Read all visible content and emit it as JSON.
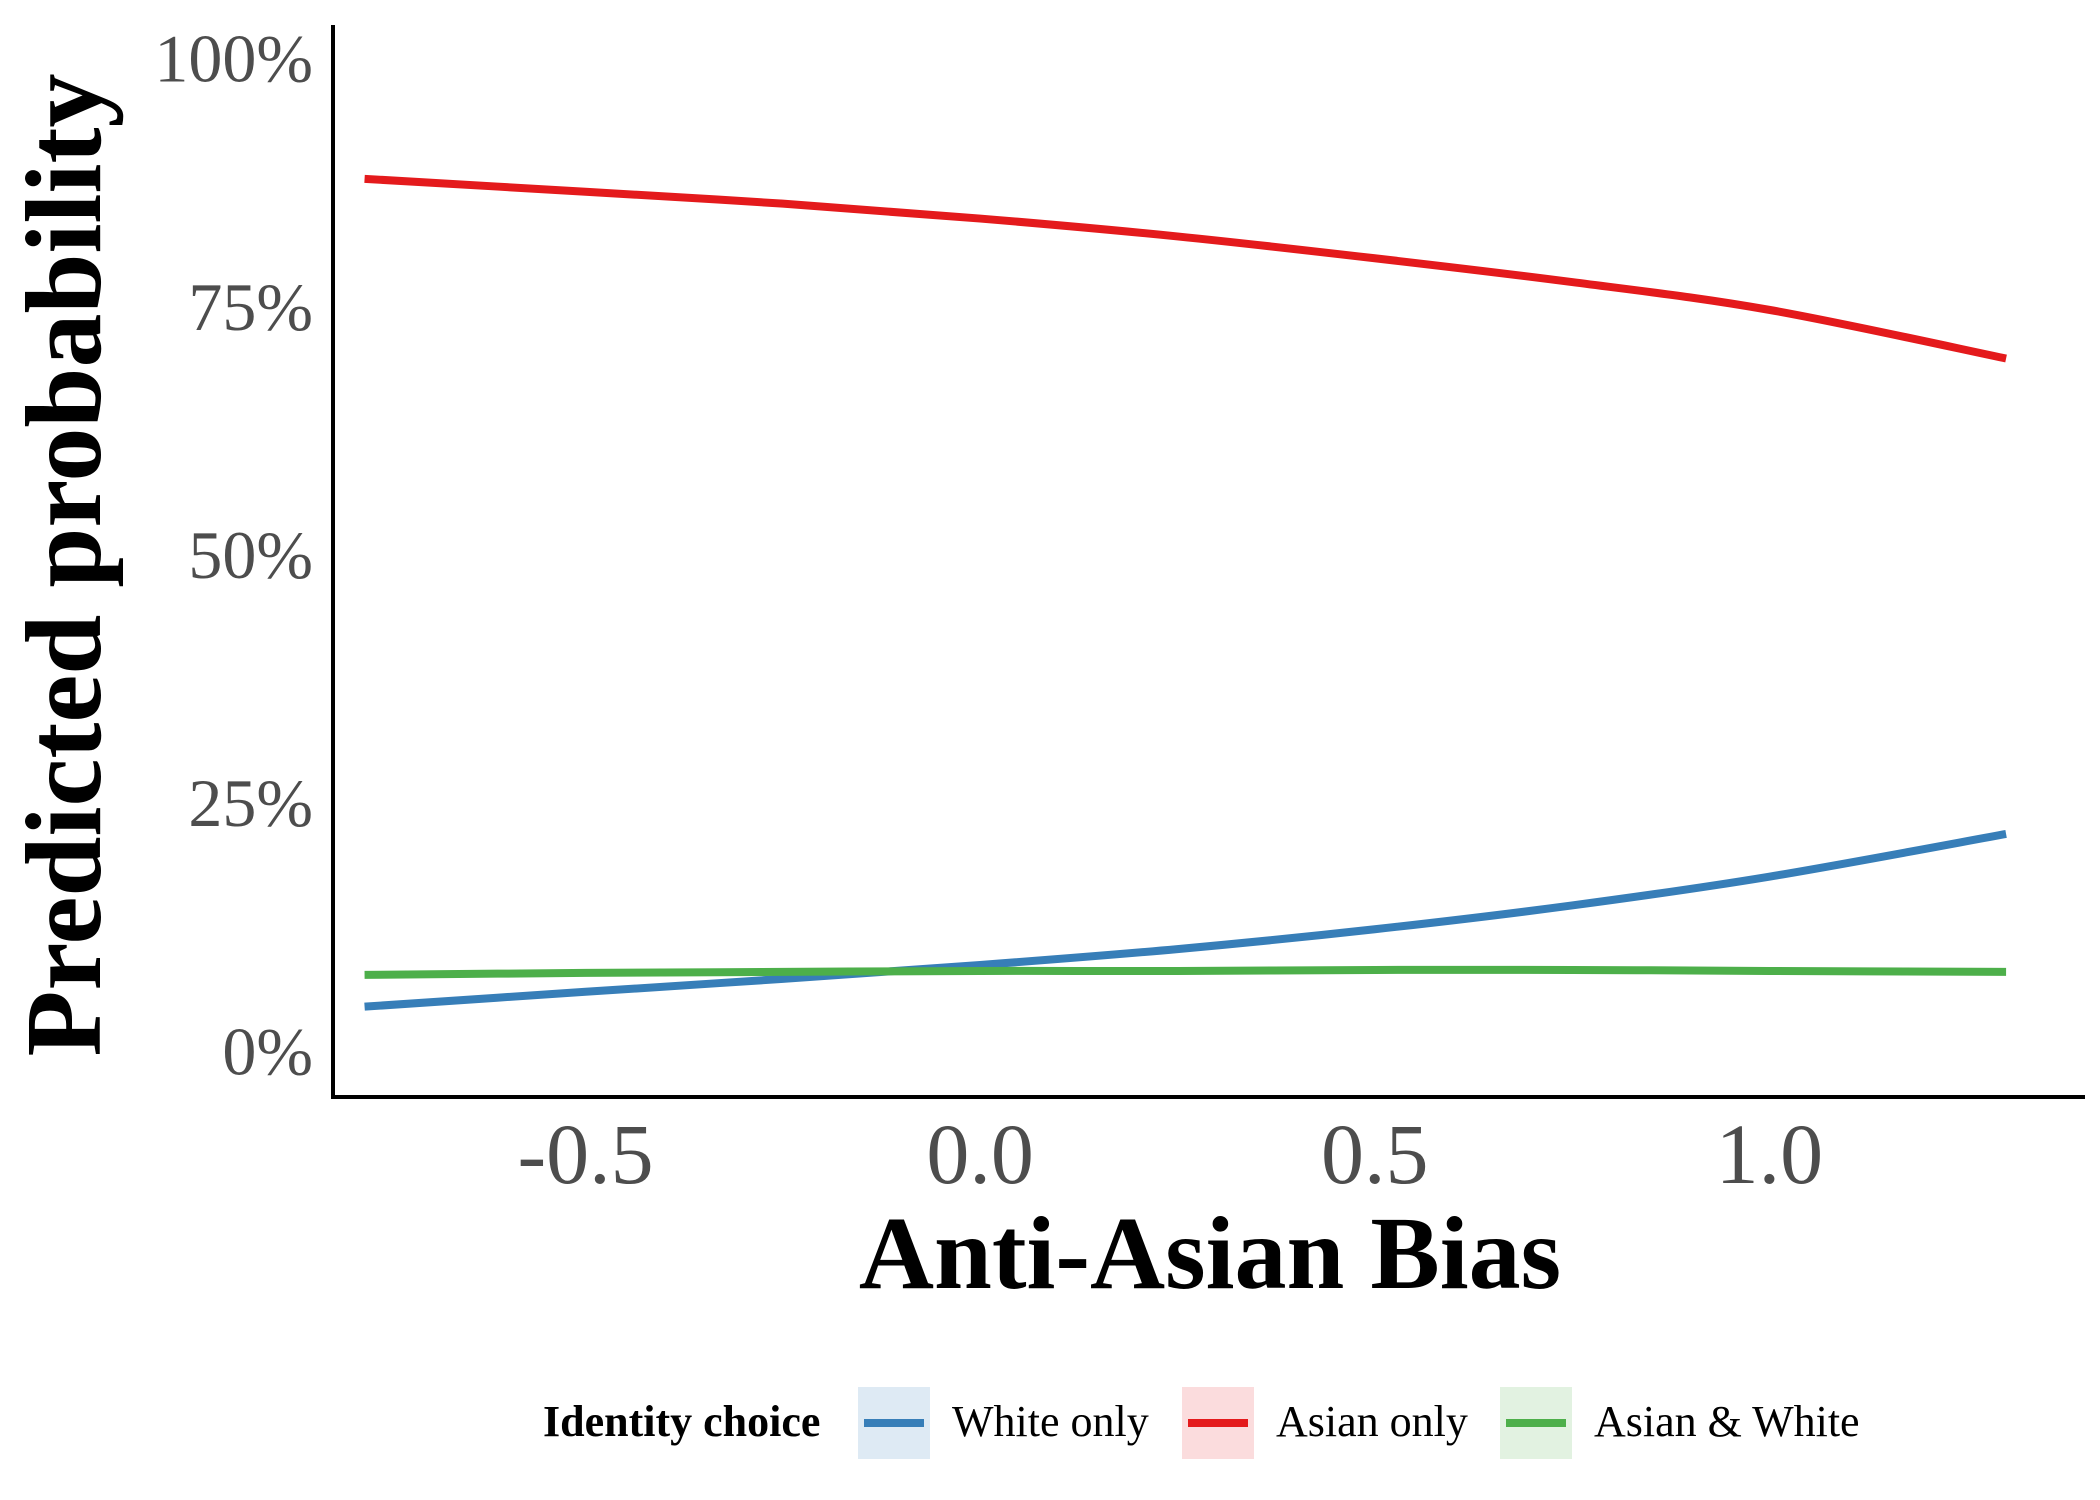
{
  "chart_data": {
    "type": "line",
    "title": "",
    "xlabel": "Anti-Asian Bias",
    "ylabel": "Predicted probability",
    "xlim": [
      -0.82,
      1.4
    ],
    "ylim": [
      -0.045,
      1.035
    ],
    "x_ticks": [
      -0.5,
      0.0,
      0.5,
      1.0
    ],
    "x_tick_labels": [
      "-0.5",
      "0.0",
      "0.5",
      "1.0"
    ],
    "y_ticks": [
      0,
      0.25,
      0.5,
      0.75,
      1.0
    ],
    "y_tick_labels": [
      "0%",
      "25%",
      "50%",
      "75%",
      "100%"
    ],
    "grid": false,
    "legend": {
      "title": "Identity choice",
      "position": "bottom"
    },
    "series": [
      {
        "name": "White only",
        "color": "#377EB8",
        "fill": "#DEEAF4",
        "x": [
          -0.78,
          -0.5,
          -0.25,
          0.0,
          0.25,
          0.5,
          0.75,
          1.0,
          1.3
        ],
        "y": [
          0.046,
          0.061,
          0.074,
          0.088,
          0.104,
          0.124,
          0.148,
          0.177,
          0.22
        ]
      },
      {
        "name": "Asian only",
        "color": "#E41A1C",
        "fill": "#FBDCDD",
        "x": [
          -0.78,
          -0.5,
          -0.25,
          0.0,
          0.25,
          0.5,
          0.75,
          1.0,
          1.3
        ],
        "y": [
          0.88,
          0.867,
          0.855,
          0.84,
          0.822,
          0.8,
          0.776,
          0.748,
          0.699
        ]
      },
      {
        "name": "Asian & White",
        "color": "#4DAF4A",
        "fill": "#E2F2E1",
        "x": [
          -0.78,
          -0.5,
          -0.25,
          0.0,
          0.25,
          0.5,
          0.75,
          1.0,
          1.3
        ],
        "y": [
          0.078,
          0.08,
          0.081,
          0.082,
          0.082,
          0.083,
          0.083,
          0.082,
          0.081
        ]
      }
    ]
  }
}
